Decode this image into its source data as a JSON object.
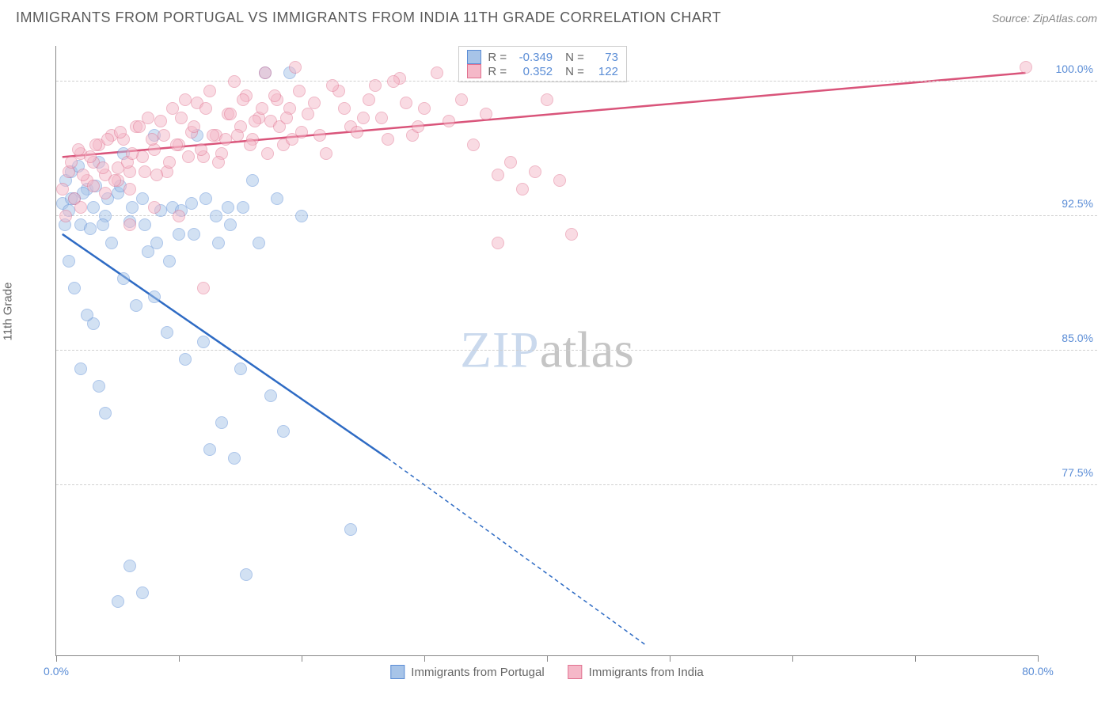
{
  "title": "IMMIGRANTS FROM PORTUGAL VS IMMIGRANTS FROM INDIA 11TH GRADE CORRELATION CHART",
  "source": "Source: ZipAtlas.com",
  "watermark": {
    "part1": "ZIP",
    "part2": "atlas"
  },
  "y_axis_label": "11th Grade",
  "chart": {
    "type": "scatter",
    "xlim": [
      0,
      80
    ],
    "ylim": [
      68,
      102
    ],
    "x_ticks": [
      0,
      10,
      20,
      30,
      40,
      50,
      60,
      70,
      80
    ],
    "x_tick_labels": {
      "0": "0.0%",
      "80": "80.0%"
    },
    "y_ticks": [
      77.5,
      85.0,
      92.5,
      100.0
    ],
    "y_tick_labels": [
      "77.5%",
      "85.0%",
      "92.5%",
      "100.0%"
    ],
    "grid_color": "#d0d0d0",
    "background_color": "#ffffff",
    "axis_color": "#888888",
    "tick_label_color": "#5b8dd6",
    "marker_size": 16,
    "marker_opacity": 0.5,
    "series": [
      {
        "name": "Immigrants from Portugal",
        "fill_color": "#a7c4e8",
        "stroke_color": "#5b8dd6",
        "r_value": "-0.349",
        "n_value": "73",
        "trend": {
          "x1": 0.5,
          "y1": 91.5,
          "x2": 27,
          "y2": 79,
          "extrap_x2": 48,
          "extrap_y2": 68.6,
          "color": "#2e6bc4",
          "width": 2.5
        },
        "points": [
          [
            0.5,
            93.2
          ],
          [
            0.8,
            94.5
          ],
          [
            1.0,
            92.8
          ],
          [
            1.2,
            95.0
          ],
          [
            1.5,
            93.5
          ],
          [
            2.0,
            92.0
          ],
          [
            2.5,
            94.0
          ],
          [
            3.0,
            93.0
          ],
          [
            3.5,
            95.5
          ],
          [
            4.0,
            92.5
          ],
          [
            4.5,
            91.0
          ],
          [
            5.0,
            93.8
          ],
          [
            5.5,
            89.0
          ],
          [
            6.0,
            92.2
          ],
          [
            6.5,
            87.5
          ],
          [
            7.0,
            93.5
          ],
          [
            7.5,
            90.5
          ],
          [
            8.0,
            88.0
          ],
          [
            8.5,
            92.8
          ],
          [
            9.0,
            86.0
          ],
          [
            9.5,
            93.0
          ],
          [
            10.0,
            91.5
          ],
          [
            10.5,
            84.5
          ],
          [
            11.0,
            93.2
          ],
          [
            11.5,
            97.0
          ],
          [
            12.0,
            85.5
          ],
          [
            12.5,
            79.5
          ],
          [
            13.0,
            92.5
          ],
          [
            13.5,
            81.0
          ],
          [
            14.0,
            93.0
          ],
          [
            14.5,
            79.0
          ],
          [
            15.0,
            84.0
          ],
          [
            15.5,
            72.5
          ],
          [
            16.0,
            94.5
          ],
          [
            17.0,
            100.5
          ],
          [
            17.5,
            82.5
          ],
          [
            18.0,
            93.5
          ],
          [
            18.5,
            80.5
          ],
          [
            19.0,
            100.5
          ],
          [
            20.0,
            92.5
          ],
          [
            2.0,
            84.0
          ],
          [
            3.0,
            86.5
          ],
          [
            3.5,
            83.0
          ],
          [
            4.0,
            81.5
          ],
          [
            5.0,
            71.0
          ],
          [
            6.0,
            73.0
          ],
          [
            7.0,
            71.5
          ],
          [
            1.0,
            90.0
          ],
          [
            1.5,
            88.5
          ],
          [
            2.5,
            87.0
          ],
          [
            1.2,
            93.5
          ],
          [
            0.7,
            92.0
          ],
          [
            1.8,
            95.3
          ],
          [
            2.2,
            93.8
          ],
          [
            2.8,
            91.8
          ],
          [
            3.2,
            94.2
          ],
          [
            3.8,
            92.0
          ],
          [
            4.2,
            93.5
          ],
          [
            5.2,
            94.2
          ],
          [
            6.2,
            93.0
          ],
          [
            7.2,
            92.0
          ],
          [
            8.2,
            91.0
          ],
          [
            9.2,
            90.0
          ],
          [
            10.2,
            92.8
          ],
          [
            11.2,
            91.5
          ],
          [
            12.2,
            93.5
          ],
          [
            13.2,
            91.0
          ],
          [
            14.2,
            92.0
          ],
          [
            15.2,
            93.0
          ],
          [
            16.5,
            91.0
          ],
          [
            5.5,
            96.0
          ],
          [
            24.0,
            75.0
          ],
          [
            8.0,
            97.0
          ]
        ]
      },
      {
        "name": "Immigrants from India",
        "fill_color": "#f5b8c8",
        "stroke_color": "#e0718f",
        "r_value": "0.352",
        "n_value": "122",
        "trend": {
          "x1": 0.5,
          "y1": 95.8,
          "x2": 79,
          "y2": 100.5,
          "color": "#d9547a",
          "width": 2.5
        },
        "points": [
          [
            0.5,
            94.0
          ],
          [
            1.0,
            95.0
          ],
          [
            1.5,
            93.5
          ],
          [
            2.0,
            96.0
          ],
          [
            2.5,
            94.5
          ],
          [
            3.0,
            95.5
          ],
          [
            3.5,
            96.5
          ],
          [
            4.0,
            94.8
          ],
          [
            4.5,
            97.0
          ],
          [
            5.0,
            95.2
          ],
          [
            5.5,
            96.8
          ],
          [
            6.0,
            94.0
          ],
          [
            6.5,
            97.5
          ],
          [
            7.0,
            95.8
          ],
          [
            7.5,
            98.0
          ],
          [
            8.0,
            96.2
          ],
          [
            8.5,
            97.8
          ],
          [
            9.0,
            95.0
          ],
          [
            9.5,
            98.5
          ],
          [
            10.0,
            96.5
          ],
          [
            10.5,
            99.0
          ],
          [
            11.0,
            97.2
          ],
          [
            11.5,
            98.8
          ],
          [
            12.0,
            95.8
          ],
          [
            12.5,
            99.5
          ],
          [
            13.0,
            97.0
          ],
          [
            13.5,
            96.0
          ],
          [
            14.0,
            98.2
          ],
          [
            14.5,
            100.0
          ],
          [
            15.0,
            97.5
          ],
          [
            15.5,
            99.2
          ],
          [
            16.0,
            96.8
          ],
          [
            16.5,
            98.0
          ],
          [
            17.0,
            100.5
          ],
          [
            17.5,
            97.8
          ],
          [
            18.0,
            99.0
          ],
          [
            18.5,
            96.5
          ],
          [
            19.0,
            98.5
          ],
          [
            19.5,
            100.8
          ],
          [
            20.0,
            97.2
          ],
          [
            21.0,
            98.8
          ],
          [
            22.0,
            96.0
          ],
          [
            23.0,
            99.5
          ],
          [
            24.0,
            97.5
          ],
          [
            25.0,
            98.0
          ],
          [
            26.0,
            99.8
          ],
          [
            27.0,
            96.8
          ],
          [
            28.0,
            100.2
          ],
          [
            29.0,
            97.0
          ],
          [
            30.0,
            98.5
          ],
          [
            31.0,
            100.5
          ],
          [
            32.0,
            97.8
          ],
          [
            33.0,
            99.0
          ],
          [
            34.0,
            96.5
          ],
          [
            35.0,
            98.2
          ],
          [
            36.0,
            94.8
          ],
          [
            37.0,
            95.5
          ],
          [
            38.0,
            94.0
          ],
          [
            39.0,
            95.0
          ],
          [
            40.0,
            99.0
          ],
          [
            41.0,
            94.5
          ],
          [
            42.0,
            91.5
          ],
          [
            36.0,
            91.0
          ],
          [
            12.0,
            88.5
          ],
          [
            79.0,
            100.8
          ],
          [
            2.0,
            93.0
          ],
          [
            3.0,
            94.2
          ],
          [
            4.0,
            93.8
          ],
          [
            5.0,
            94.5
          ],
          [
            6.0,
            95.0
          ],
          [
            1.2,
            95.5
          ],
          [
            1.8,
            96.2
          ],
          [
            2.2,
            94.8
          ],
          [
            2.8,
            95.8
          ],
          [
            3.2,
            96.5
          ],
          [
            3.8,
            95.2
          ],
          [
            4.2,
            96.8
          ],
          [
            4.8,
            94.5
          ],
          [
            5.2,
            97.2
          ],
          [
            5.8,
            95.5
          ],
          [
            6.2,
            96.0
          ],
          [
            6.8,
            97.5
          ],
          [
            7.2,
            95.0
          ],
          [
            7.8,
            96.8
          ],
          [
            8.2,
            94.8
          ],
          [
            8.8,
            97.0
          ],
          [
            9.2,
            95.5
          ],
          [
            9.8,
            96.5
          ],
          [
            10.2,
            98.0
          ],
          [
            10.8,
            95.8
          ],
          [
            11.2,
            97.5
          ],
          [
            11.8,
            96.2
          ],
          [
            12.2,
            98.5
          ],
          [
            12.8,
            97.0
          ],
          [
            13.2,
            95.5
          ],
          [
            13.8,
            96.8
          ],
          [
            14.2,
            98.2
          ],
          [
            14.8,
            97.0
          ],
          [
            15.2,
            99.0
          ],
          [
            15.8,
            96.5
          ],
          [
            16.2,
            97.8
          ],
          [
            16.8,
            98.5
          ],
          [
            17.2,
            96.0
          ],
          [
            17.8,
            99.2
          ],
          [
            18.2,
            97.5
          ],
          [
            18.8,
            98.0
          ],
          [
            19.2,
            96.8
          ],
          [
            19.8,
            99.5
          ],
          [
            20.5,
            98.2
          ],
          [
            21.5,
            97.0
          ],
          [
            22.5,
            99.8
          ],
          [
            23.5,
            98.5
          ],
          [
            24.5,
            97.2
          ],
          [
            25.5,
            99.0
          ],
          [
            26.5,
            98.0
          ],
          [
            27.5,
            100.0
          ],
          [
            28.5,
            98.8
          ],
          [
            29.5,
            97.5
          ],
          [
            8.0,
            93.0
          ],
          [
            10.0,
            92.5
          ],
          [
            6.0,
            92.0
          ],
          [
            0.8,
            92.5
          ]
        ]
      }
    ]
  },
  "legend_labels": {
    "r": "R =",
    "n": "N ="
  }
}
